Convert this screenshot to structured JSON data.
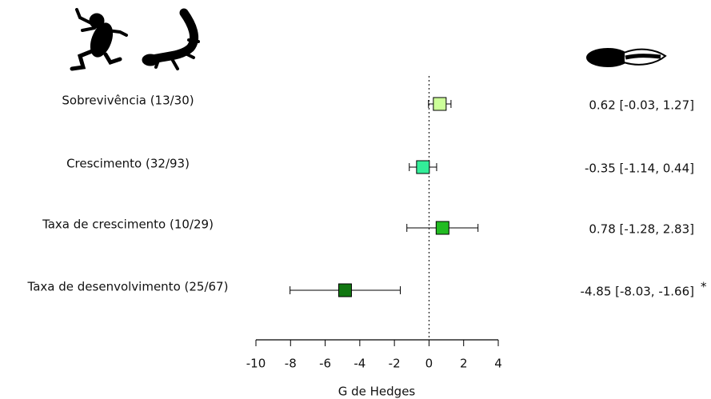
{
  "chart_data": {
    "type": "forest",
    "categories": [
      "Sobrevivência (13/30)",
      "Crescimento (32/93)",
      "Taxa de crescimento (10/29)",
      "Taxa de desenvolvimento (25/67)"
    ],
    "values": [
      0.62,
      -0.35,
      0.78,
      -4.85
    ],
    "lower": [
      -0.03,
      -1.14,
      -1.28,
      -8.03
    ],
    "upper": [
      1.27,
      0.44,
      2.83,
      -1.66
    ],
    "value_labels": [
      "0.62 [-0.03,  1.27]",
      "-0.35 [-1.14,  0.44]",
      "0.78 [-1.28,  2.83]",
      "-4.85 [-8.03, -1.66]"
    ],
    "significance": [
      null,
      null,
      null,
      "*"
    ],
    "colors": [
      "#ccff99",
      "#33ee99",
      "#22bb22",
      "#117711"
    ],
    "xlim": [
      -10,
      4
    ],
    "xticks": [
      -10,
      -8,
      -6,
      -4,
      -2,
      0,
      2,
      4
    ],
    "xlabel": "G de Hedges",
    "reference_line": 0
  }
}
